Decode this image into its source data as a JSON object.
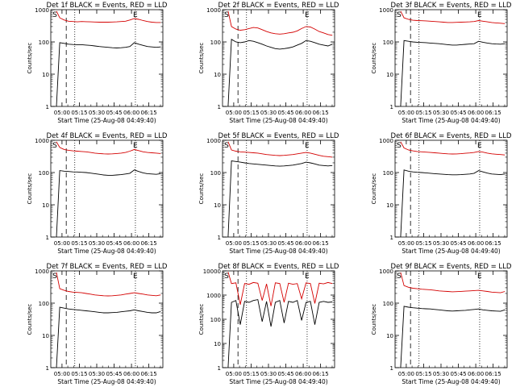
{
  "figure": {
    "background": "#ffffff",
    "axis_color": "#000000",
    "events_color": "#000000",
    "lld_color": "#d40000"
  },
  "chart_data": [
    {
      "type": "line",
      "title": "Det 1f BLACK = Events, RED = LLD",
      "xlabel": "Start Time (25-Aug-08 04:49:40)",
      "ylabel": "Counts/sec",
      "yscale": "log",
      "ylim": [
        1,
        1000
      ],
      "ytick_labels": [
        "1",
        "10",
        "100",
        "1000"
      ],
      "xtick_labels": [
        "05:00",
        "05:15",
        "05:30",
        "05:45",
        "06:00",
        "06:15"
      ],
      "marker_s": "S",
      "marker_e": "E",
      "series": [
        {
          "name": "LLD",
          "values": [
            900,
            560,
            480,
            440,
            430,
            420,
            430,
            425,
            420,
            415,
            410,
            410,
            410,
            415,
            420,
            430,
            440,
            480,
            530,
            500,
            460,
            430,
            410,
            400,
            400
          ]
        },
        {
          "name": "Events",
          "values": [
            1,
            95,
            90,
            85,
            83,
            82,
            82,
            80,
            78,
            75,
            72,
            70,
            68,
            66,
            65,
            66,
            68,
            72,
            95,
            85,
            78,
            72,
            70,
            68,
            70
          ]
        }
      ]
    },
    {
      "type": "line",
      "title": "Det 2f BLACK = Events, RED = LLD",
      "xlabel": "Start Time (25-Aug-08 04:49:40)",
      "ylabel": "Counts/sec",
      "yscale": "log",
      "ylim": [
        1,
        1000
      ],
      "ytick_labels": [
        "1",
        "10",
        "100",
        "1000"
      ],
      "xtick_labels": [
        "05:00",
        "05:15",
        "05:30",
        "05:45",
        "06:00",
        "06:15"
      ],
      "marker_s": "S",
      "marker_e": "E",
      "series": [
        {
          "name": "LLD",
          "values": [
            900,
            300,
            250,
            230,
            240,
            260,
            280,
            270,
            240,
            210,
            190,
            180,
            175,
            180,
            190,
            200,
            220,
            260,
            300,
            290,
            250,
            210,
            190,
            170,
            160
          ]
        },
        {
          "name": "Events",
          "values": [
            1,
            120,
            100,
            95,
            100,
            110,
            105,
            95,
            85,
            75,
            68,
            62,
            60,
            62,
            65,
            70,
            80,
            90,
            110,
            105,
            95,
            85,
            80,
            75,
            85
          ]
        }
      ]
    },
    {
      "type": "line",
      "title": "Det 3f BLACK = Events, RED = LLD",
      "xlabel": "Start Time (25-Aug-08 04:49:40)",
      "ylabel": "Counts/sec",
      "yscale": "log",
      "ylim": [
        1,
        1000
      ],
      "ytick_labels": [
        "1",
        "10",
        "100",
        "1000"
      ],
      "xtick_labels": [
        "05:00",
        "05:15",
        "05:30",
        "05:45",
        "06:00",
        "06:15"
      ],
      "marker_s": "S",
      "marker_e": "E",
      "series": [
        {
          "name": "LLD",
          "values": [
            900,
            560,
            500,
            470,
            460,
            455,
            450,
            440,
            430,
            420,
            410,
            400,
            400,
            405,
            410,
            415,
            420,
            430,
            460,
            440,
            420,
            400,
            390,
            380,
            370
          ]
        },
        {
          "name": "Events",
          "values": [
            1,
            110,
            105,
            100,
            98,
            96,
            95,
            92,
            90,
            88,
            85,
            82,
            80,
            80,
            82,
            84,
            86,
            88,
            105,
            98,
            92,
            88,
            86,
            85,
            88
          ]
        }
      ]
    },
    {
      "type": "line",
      "title": "Det 4f BLACK = Events, RED = LLD",
      "xlabel": "Start Time (25-Aug-08 04:49:40)",
      "ylabel": "Counts/sec",
      "yscale": "log",
      "ylim": [
        1,
        1000
      ],
      "ytick_labels": [
        "1",
        "10",
        "100",
        "1000"
      ],
      "xtick_labels": [
        "05:00",
        "05:15",
        "05:30",
        "05:45",
        "06:00",
        "06:15"
      ],
      "marker_s": "S",
      "marker_e": "E",
      "series": [
        {
          "name": "LLD",
          "values": [
            900,
            600,
            520,
            490,
            470,
            460,
            450,
            440,
            420,
            400,
            390,
            380,
            375,
            380,
            390,
            400,
            420,
            460,
            520,
            480,
            440,
            420,
            410,
            400,
            390
          ]
        },
        {
          "name": "Events",
          "values": [
            1,
            115,
            110,
            108,
            105,
            104,
            102,
            100,
            96,
            92,
            88,
            84,
            82,
            82,
            84,
            86,
            90,
            95,
            120,
            108,
            98,
            92,
            90,
            88,
            92
          ]
        }
      ]
    },
    {
      "type": "line",
      "title": "Det 5f BLACK = Events, RED = LLD",
      "xlabel": "Start Time (25-Aug-08 04:49:40)",
      "ylabel": "Counts/sec",
      "yscale": "log",
      "ylim": [
        1,
        1000
      ],
      "ytick_labels": [
        "1",
        "10",
        "100",
        "1000"
      ],
      "xtick_labels": [
        "05:00",
        "05:15",
        "05:30",
        "05:45",
        "06:00",
        "06:15"
      ],
      "marker_s": "S",
      "marker_e": "E",
      "series": [
        {
          "name": "LLD",
          "values": [
            900,
            500,
            460,
            440,
            430,
            420,
            410,
            400,
            380,
            360,
            350,
            340,
            335,
            340,
            350,
            360,
            380,
            400,
            420,
            400,
            370,
            340,
            320,
            310,
            300
          ]
        },
        {
          "name": "Events",
          "values": [
            1,
            230,
            220,
            210,
            200,
            190,
            185,
            180,
            175,
            170,
            165,
            160,
            158,
            160,
            165,
            170,
            180,
            190,
            210,
            200,
            185,
            170,
            165,
            160,
            165
          ]
        }
      ]
    },
    {
      "type": "line",
      "title": "Det 6f BLACK = Events, RED = LLD",
      "xlabel": "Start Time (25-Aug-08 04:49:40)",
      "ylabel": "Counts/sec",
      "yscale": "log",
      "ylim": [
        1,
        1000
      ],
      "ytick_labels": [
        "1",
        "10",
        "100",
        "1000"
      ],
      "xtick_labels": [
        "05:00",
        "05:15",
        "05:30",
        "05:45",
        "06:00",
        "06:15"
      ],
      "marker_s": "S",
      "marker_e": "E",
      "series": [
        {
          "name": "LLD",
          "values": [
            900,
            580,
            500,
            470,
            450,
            440,
            430,
            420,
            410,
            400,
            390,
            380,
            375,
            378,
            385,
            395,
            405,
            420,
            450,
            430,
            400,
            380,
            370,
            360,
            350
          ]
        },
        {
          "name": "Events",
          "values": [
            1,
            120,
            110,
            105,
            102,
            100,
            98,
            95,
            92,
            90,
            88,
            86,
            85,
            85,
            86,
            88,
            90,
            95,
            115,
            105,
            96,
            90,
            88,
            86,
            90
          ]
        }
      ]
    },
    {
      "type": "line",
      "title": "Det 7f BLACK = Events, RED = LLD",
      "xlabel": "Start Time (25-Aug-08 04:49:40)",
      "ylabel": "Counts/sec",
      "yscale": "log",
      "ylim": [
        1,
        1000
      ],
      "ytick_labels": [
        "1",
        "10",
        "100",
        "1000"
      ],
      "xtick_labels": [
        "05:00",
        "05:15",
        "05:30",
        "05:45",
        "06:00",
        "06:15"
      ],
      "marker_s": "S",
      "marker_e": "E",
      "series": [
        {
          "name": "LLD",
          "values": [
            900,
            280,
            250,
            230,
            220,
            215,
            210,
            200,
            190,
            180,
            175,
            170,
            168,
            170,
            175,
            180,
            190,
            200,
            210,
            200,
            190,
            180,
            175,
            170,
            180
          ]
        },
        {
          "name": "Events",
          "values": [
            1,
            75,
            70,
            66,
            64,
            62,
            60,
            58,
            56,
            54,
            52,
            50,
            50,
            51,
            52,
            54,
            56,
            58,
            62,
            58,
            55,
            52,
            50,
            50,
            55
          ]
        }
      ]
    },
    {
      "type": "line",
      "title": "Det 8f BLACK = Events, RED = LLD",
      "xlabel": "Start Time (25-Aug-08 04:49:40)",
      "ylabel": "Counts/sec",
      "yscale": "log",
      "ylim": [
        1,
        10000
      ],
      "ytick_labels": [
        "1",
        "10",
        "100",
        "1000",
        "10000"
      ],
      "xtick_labels": [
        "05:00",
        "05:15",
        "05:30",
        "05:45",
        "06:00",
        "06:15"
      ],
      "marker_s": "S",
      "marker_e": "E",
      "series": [
        {
          "name": "LLD",
          "values": [
            9000,
            3000,
            3200,
            400,
            3000,
            2800,
            3300,
            3100,
            600,
            2900,
            350,
            3200,
            3000,
            500,
            3100,
            2800,
            3000,
            700,
            3200,
            3000,
            450,
            3100,
            2900,
            3300,
            3000
          ]
        },
        {
          "name": "Events",
          "values": [
            1,
            500,
            600,
            60,
            550,
            500,
            600,
            650,
            80,
            550,
            50,
            500,
            600,
            70,
            550,
            500,
            600,
            90,
            500,
            550,
            60,
            500,
            550,
            500,
            520
          ]
        }
      ]
    },
    {
      "type": "line",
      "title": "Det 9f BLACK = Events, RED = LLD",
      "xlabel": "Start Time (25-Aug-08 04:49:40)",
      "ylabel": "Counts/sec",
      "yscale": "log",
      "ylim": [
        1,
        1000
      ],
      "ytick_labels": [
        "1",
        "10",
        "100",
        "1000"
      ],
      "xtick_labels": [
        "05:00",
        "05:15",
        "05:30",
        "05:45",
        "06:00",
        "06:15"
      ],
      "marker_s": "S",
      "marker_e": "E",
      "series": [
        {
          "name": "LLD",
          "values": [
            900,
            350,
            310,
            290,
            280,
            270,
            265,
            260,
            250,
            240,
            235,
            230,
            225,
            228,
            232,
            236,
            240,
            245,
            250,
            240,
            230,
            220,
            215,
            210,
            230
          ]
        },
        {
          "name": "Events",
          "values": [
            1,
            80,
            75,
            72,
            70,
            68,
            67,
            66,
            64,
            62,
            60,
            58,
            57,
            58,
            59,
            60,
            62,
            64,
            66,
            62,
            60,
            58,
            57,
            56,
            62
          ]
        }
      ]
    }
  ]
}
